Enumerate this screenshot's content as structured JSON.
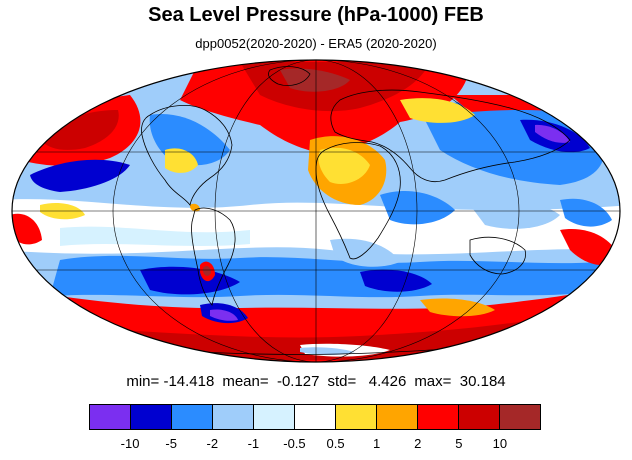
{
  "title": "Sea Level Pressure (hPa-1000) FEB",
  "subtitle": "dpp0052(2020-2020) - ERA5 (2020-2020)",
  "stats": {
    "min": "min= -14.418",
    "mean": "mean=  -0.127",
    "std": "std=   4.426",
    "max": "max=  30.184"
  },
  "colorbar": {
    "colors": [
      "#7b2ff0",
      "#0000d0",
      "#2b8cff",
      "#9fcdfa",
      "#d6f2ff",
      "#ffffff",
      "#ffe033",
      "#ffa500",
      "#ff0000",
      "#cc0000",
      "#a52828"
    ],
    "labels": [
      "-10",
      "-5",
      "-2",
      "-1",
      "-0.5",
      "0.5",
      "1",
      "2",
      "5",
      "10"
    ]
  },
  "map": {
    "projection": "Mollweide",
    "colors": {
      "neg_strong": "#0000d0",
      "neg_mid": "#2b8cff",
      "neg_light": "#9fcdfa",
      "neg_faint": "#d6f2ff",
      "pos_yellow": "#ffe033",
      "pos_orange": "#ffa500",
      "pos_red": "#ff0000",
      "pos_darkred": "#cc0000",
      "pos_brown": "#a52828",
      "purple": "#7b2ff0"
    }
  }
}
